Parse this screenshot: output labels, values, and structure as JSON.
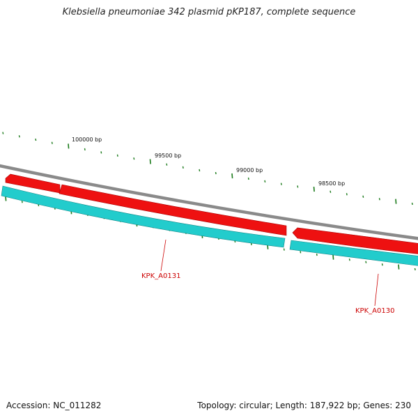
{
  "title": "Klebsiella pneumoniae 342 plasmid pKP187, complete sequence",
  "footer": {
    "accession": "Accession: NC_011282",
    "summary": "Topology: circular; Length: 187,922 bp; Genes: 230"
  },
  "scale_labels": [
    "100000 bp",
    "99500 bp",
    "99000 bp",
    "98500 bp"
  ],
  "genes": [
    {
      "label": "KPK_A0131"
    },
    {
      "label": "KPK_A0130"
    }
  ],
  "colors": {
    "backbone": "#888888",
    "forward_feature": "#ee1111",
    "reverse_feature": "#22cccc",
    "tick": "#1a7a1a",
    "gene_label": "#cc0000"
  }
}
